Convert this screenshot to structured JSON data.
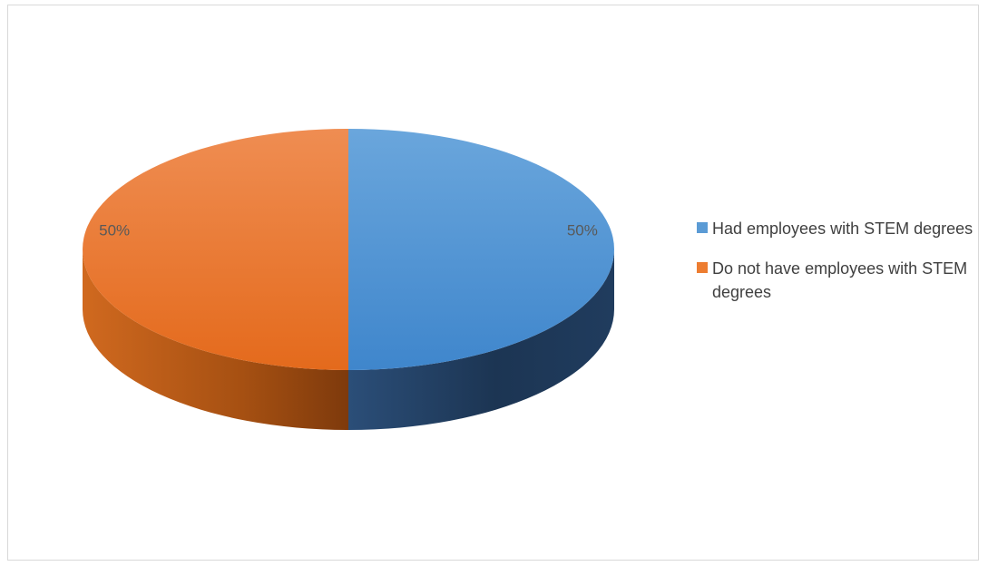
{
  "chart_data": {
    "type": "pie",
    "title": "",
    "slices": [
      {
        "label": "Had employees with STEM degrees",
        "value": 50,
        "data_label": "50%",
        "color": "#5b9bd5",
        "side_color": "#1f3a5c"
      },
      {
        "label": "Do not have employees with STEM degrees",
        "value": 50,
        "data_label": "50%",
        "color": "#ed7d31",
        "side_color": "#9c4a14"
      }
    ],
    "legend_position": "right",
    "style": "3d"
  }
}
